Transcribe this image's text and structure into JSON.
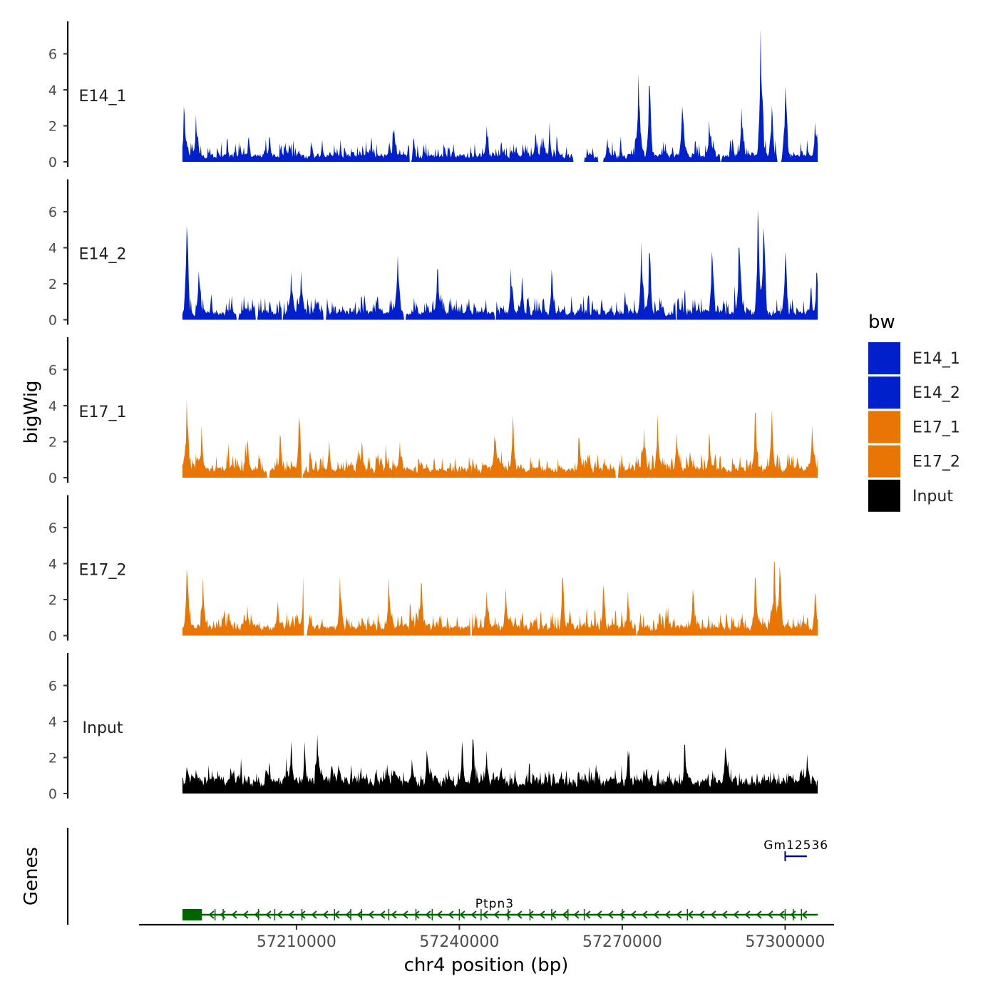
{
  "chart_data": {
    "type": "area",
    "chromosome": "chr4",
    "xlabel": "chr4 position (bp)",
    "ylabel": "bigWig",
    "genes_panel_label": "Genes",
    "xlim": [
      57181000,
      57309000
    ],
    "x_data_range": [
      57189000,
      57306000
    ],
    "x_ticks": [
      57210000,
      57240000,
      57270000,
      57300000
    ],
    "x_tick_labels": [
      "57210000",
      "57240000",
      "57270000",
      "57300000"
    ],
    "y_ticks": [
      0,
      2,
      4,
      6
    ],
    "y_tick_labels": [
      "0",
      "2",
      "4",
      "6"
    ],
    "ylim": [
      0,
      7.8
    ],
    "legend": {
      "title": "bw",
      "entries": [
        {
          "label": "E14_1",
          "color": "#0020CC"
        },
        {
          "label": "E14_2",
          "color": "#0020CC"
        },
        {
          "label": "E17_1",
          "color": "#E87504"
        },
        {
          "label": "E17_2",
          "color": "#E87504"
        },
        {
          "label": "Input",
          "color": "#000000"
        }
      ]
    },
    "tracks": [
      {
        "name": "E14_1",
        "color": "#0020CC",
        "baseline": 0.45,
        "noise": 0.9,
        "seed": 11,
        "peaks": [
          [
            57189300,
            3.1
          ],
          [
            57191500,
            2.6
          ],
          [
            57205000,
            1.4
          ],
          [
            57228000,
            1.8
          ],
          [
            57245000,
            2.0
          ],
          [
            57254000,
            1.6
          ],
          [
            57273000,
            4.9
          ],
          [
            57275000,
            4.2
          ],
          [
            57281000,
            3.1
          ],
          [
            57286000,
            2.3
          ],
          [
            57292000,
            3.0
          ],
          [
            57295500,
            7.4
          ],
          [
            57297500,
            3.1
          ],
          [
            57300000,
            4.2
          ],
          [
            57305500,
            2.2
          ]
        ],
        "gaps": [
          [
            57230800,
            57231200
          ],
          [
            57261000,
            57263000
          ],
          [
            57265500,
            57266600
          ],
          [
            57288000,
            57288300
          ],
          [
            57298500,
            57299300
          ]
        ]
      },
      {
        "name": "E14_2",
        "color": "#0020CC",
        "baseline": 0.55,
        "noise": 1.0,
        "seed": 29,
        "peaks": [
          [
            57189800,
            5.2
          ],
          [
            57192000,
            2.7
          ],
          [
            57209000,
            2.7
          ],
          [
            57210800,
            2.7
          ],
          [
            57228600,
            3.6
          ],
          [
            57236000,
            2.8
          ],
          [
            57249500,
            2.9
          ],
          [
            57251500,
            2.4
          ],
          [
            57257000,
            2.8
          ],
          [
            57273500,
            4.3
          ],
          [
            57275000,
            3.7
          ],
          [
            57280000,
            2.8
          ],
          [
            57286500,
            3.8
          ],
          [
            57291500,
            4.0
          ],
          [
            57295000,
            6.1
          ],
          [
            57296000,
            5.1
          ],
          [
            57300000,
            3.8
          ],
          [
            57305800,
            2.6
          ]
        ],
        "gaps": [
          [
            57199000,
            57199300
          ],
          [
            57202500,
            57202800
          ],
          [
            57207300,
            57207500
          ],
          [
            57215000,
            57215400
          ],
          [
            57229800,
            57230100
          ],
          [
            57246500,
            57246800
          ],
          [
            57279800,
            57280100
          ]
        ]
      },
      {
        "name": "E17_1",
        "color": "#E87504",
        "baseline": 0.65,
        "noise": 0.8,
        "seed": 47,
        "peaks": [
          [
            57189800,
            4.4
          ],
          [
            57192500,
            2.9
          ],
          [
            57201000,
            2.1
          ],
          [
            57207000,
            2.3
          ],
          [
            57210500,
            3.4
          ],
          [
            57216000,
            2.1
          ],
          [
            57222000,
            2.0
          ],
          [
            57229000,
            2.0
          ],
          [
            57246500,
            2.3
          ],
          [
            57249800,
            3.5
          ],
          [
            57262000,
            2.2
          ],
          [
            57274000,
            2.8
          ],
          [
            57276500,
            3.6
          ],
          [
            57280000,
            2.5
          ],
          [
            57286000,
            2.5
          ],
          [
            57294500,
            3.6
          ],
          [
            57297500,
            3.8
          ],
          [
            57305000,
            2.9
          ]
        ],
        "gaps": [
          [
            57204600,
            57205000
          ],
          [
            57210900,
            57211200
          ],
          [
            57268700,
            57269300
          ]
        ]
      },
      {
        "name": "E17_2",
        "color": "#E87504",
        "baseline": 0.65,
        "noise": 0.85,
        "seed": 83,
        "peaks": [
          [
            57189800,
            3.7
          ],
          [
            57192800,
            3.3
          ],
          [
            57201000,
            1.7
          ],
          [
            57206500,
            1.9
          ],
          [
            57211300,
            3.3
          ],
          [
            57218000,
            3.3
          ],
          [
            57227000,
            3.3
          ],
          [
            57233000,
            2.9
          ],
          [
            57245000,
            2.5
          ],
          [
            57248500,
            2.7
          ],
          [
            57259000,
            3.2
          ],
          [
            57266500,
            2.8
          ],
          [
            57271000,
            2.5
          ],
          [
            57283000,
            2.6
          ],
          [
            57294500,
            3.2
          ],
          [
            57298000,
            4.1
          ],
          [
            57299000,
            3.9
          ],
          [
            57305500,
            2.4
          ]
        ],
        "gaps": [
          [
            57211300,
            57212000
          ],
          [
            57242000,
            57242300
          ],
          [
            57272500,
            57272800
          ]
        ]
      },
      {
        "name": "Input",
        "color": "#000000",
        "baseline": 0.9,
        "noise": 0.7,
        "seed": 131,
        "peaks": [
          [
            57209000,
            2.9
          ],
          [
            57211500,
            2.9
          ],
          [
            57213800,
            3.3
          ],
          [
            57234000,
            2.4
          ],
          [
            57240500,
            2.9
          ],
          [
            57242500,
            3.0
          ],
          [
            57245000,
            2.4
          ],
          [
            57271000,
            2.4
          ],
          [
            57281500,
            2.7
          ],
          [
            57289000,
            2.6
          ],
          [
            57304000,
            2.2
          ]
        ],
        "gaps": []
      }
    ],
    "genes": [
      {
        "name": "Ptpn3",
        "strand": "-",
        "color": "#006400",
        "start": 57189000,
        "end": 57306000,
        "label_at": 57246500,
        "row": "lower",
        "exon_ticks": [
          57192500,
          57195000,
          57196500,
          57203000,
          57206000,
          57211000,
          57217000,
          57220000,
          57222000,
          57227000,
          57232000,
          57235000,
          57240000,
          57244000,
          57249000,
          57253000,
          57257000,
          57260000,
          57263000,
          57270000,
          57282000,
          57300000,
          57301500,
          57303000
        ]
      },
      {
        "name": "Gm12536",
        "strand": "+",
        "color": "#00008B",
        "start": 57300000,
        "end": 57304000,
        "label_at": 57302000,
        "row": "upper"
      }
    ]
  }
}
